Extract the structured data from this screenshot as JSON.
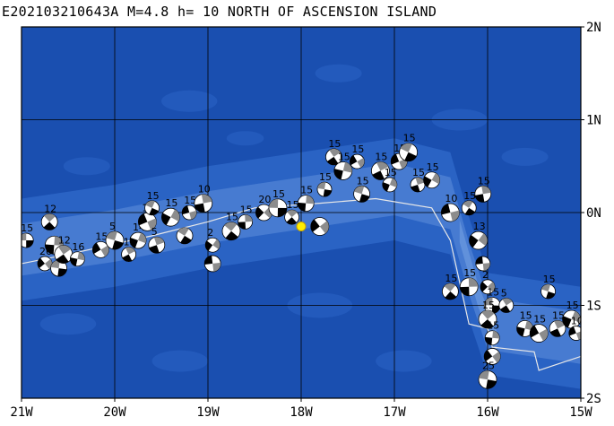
{
  "title": "E202103210643A  M=4.8  h= 10  NORTH OF ASCENSION ISLAND",
  "axes": {
    "lon_labels": [
      "21W",
      "20W",
      "19W",
      "18W",
      "17W",
      "16W",
      "15W"
    ],
    "lat_labels": [
      "2N",
      "1N",
      "0N",
      "1S",
      "2S"
    ],
    "lon_range": [
      -21,
      -15
    ],
    "lat_range": [
      -2,
      2
    ]
  },
  "colors": {
    "ocean_deep": "#1a4fb0",
    "ocean_mid": "#2a63c4",
    "ridge": "#5e90dc",
    "ridge_light": "#8ab4ea",
    "grid": "#000000",
    "plate_boundary": "#e8e8e8",
    "epicenter": "#ffee00",
    "beachball_shade": "#8c8c8c"
  },
  "epicenter": {
    "lon": -18.0,
    "lat": -0.15,
    "marker": "yellow-circle"
  },
  "plate_boundary": [
    [
      -21.0,
      -0.55
    ],
    [
      -20.5,
      -0.45
    ],
    [
      -19.6,
      -0.25
    ],
    [
      -19.0,
      -0.1
    ],
    [
      -18.5,
      0.05
    ],
    [
      -17.8,
      0.1
    ],
    [
      -17.2,
      0.15
    ],
    [
      -16.6,
      0.05
    ],
    [
      -16.4,
      -0.3
    ],
    [
      -16.2,
      -1.2
    ],
    [
      -16.0,
      -1.25
    ],
    [
      -15.95,
      -1.45
    ],
    [
      -15.5,
      -1.5
    ],
    [
      -15.45,
      -1.7
    ],
    [
      -15.0,
      -1.55
    ]
  ],
  "events": [
    {
      "lon": -20.95,
      "lat": -0.3,
      "label": "15"
    },
    {
      "lon": -20.7,
      "lat": -0.1,
      "label": "12"
    },
    {
      "lon": -20.65,
      "lat": -0.35,
      "label": ""
    },
    {
      "lon": -20.75,
      "lat": -0.55,
      "label": "26"
    },
    {
      "lon": -20.6,
      "lat": -0.6,
      "label": ""
    },
    {
      "lon": -20.55,
      "lat": -0.45,
      "label": "12"
    },
    {
      "lon": -20.4,
      "lat": -0.5,
      "label": "16"
    },
    {
      "lon": -20.15,
      "lat": -0.4,
      "label": "15"
    },
    {
      "lon": -20.0,
      "lat": -0.3,
      "label": "5"
    },
    {
      "lon": -19.85,
      "lat": -0.45,
      "label": "15"
    },
    {
      "lon": -19.75,
      "lat": -0.3,
      "label": "14"
    },
    {
      "lon": -19.65,
      "lat": -0.1,
      "label": "15"
    },
    {
      "lon": -19.6,
      "lat": 0.05,
      "label": "15"
    },
    {
      "lon": -19.55,
      "lat": -0.35,
      "label": "5"
    },
    {
      "lon": -19.4,
      "lat": -0.05,
      "label": "15"
    },
    {
      "lon": -19.2,
      "lat": 0.0,
      "label": "15"
    },
    {
      "lon": -19.25,
      "lat": -0.25,
      "label": ""
    },
    {
      "lon": -19.05,
      "lat": 0.1,
      "label": "10"
    },
    {
      "lon": -18.95,
      "lat": -0.35,
      "label": "2"
    },
    {
      "lon": -18.95,
      "lat": -0.55,
      "label": ""
    },
    {
      "lon": -18.75,
      "lat": -0.2,
      "label": "15"
    },
    {
      "lon": -18.6,
      "lat": -0.1,
      "label": "15"
    },
    {
      "lon": -18.4,
      "lat": 0.0,
      "label": "20"
    },
    {
      "lon": -18.25,
      "lat": 0.05,
      "label": "15"
    },
    {
      "lon": -18.1,
      "lat": -0.05,
      "label": "15"
    },
    {
      "lon": -17.95,
      "lat": 0.1,
      "label": "15"
    },
    {
      "lon": -17.8,
      "lat": -0.15,
      "label": ""
    },
    {
      "lon": -17.75,
      "lat": 0.25,
      "label": "15"
    },
    {
      "lon": -17.65,
      "lat": 0.6,
      "label": "15"
    },
    {
      "lon": -17.55,
      "lat": 0.45,
      "label": "15"
    },
    {
      "lon": -17.4,
      "lat": 0.55,
      "label": "15"
    },
    {
      "lon": -17.35,
      "lat": 0.2,
      "label": "15"
    },
    {
      "lon": -17.15,
      "lat": 0.45,
      "label": "15"
    },
    {
      "lon": -17.05,
      "lat": 0.3,
      "label": "15"
    },
    {
      "lon": -16.95,
      "lat": 0.55,
      "label": "15"
    },
    {
      "lon": -16.85,
      "lat": 0.65,
      "label": "15"
    },
    {
      "lon": -16.75,
      "lat": 0.3,
      "label": "15"
    },
    {
      "lon": -16.6,
      "lat": 0.35,
      "label": "15"
    },
    {
      "lon": -16.4,
      "lat": 0.0,
      "label": "10"
    },
    {
      "lon": -16.2,
      "lat": 0.05,
      "label": "15"
    },
    {
      "lon": -16.05,
      "lat": 0.2,
      "label": "15"
    },
    {
      "lon": -16.1,
      "lat": -0.3,
      "label": "13"
    },
    {
      "lon": -16.05,
      "lat": -0.55,
      "label": ""
    },
    {
      "lon": -16.4,
      "lat": -0.85,
      "label": "15"
    },
    {
      "lon": -16.2,
      "lat": -0.8,
      "label": "15"
    },
    {
      "lon": -16.0,
      "lat": -0.8,
      "label": "2"
    },
    {
      "lon": -15.95,
      "lat": -1.0,
      "label": "15"
    },
    {
      "lon": -16.0,
      "lat": -1.15,
      "label": "15"
    },
    {
      "lon": -15.95,
      "lat": -1.35,
      "label": "15"
    },
    {
      "lon": -15.95,
      "lat": -1.55,
      "label": ""
    },
    {
      "lon": -16.0,
      "lat": -1.8,
      "label": "25"
    },
    {
      "lon": -15.8,
      "lat": -1.0,
      "label": "5"
    },
    {
      "lon": -15.6,
      "lat": -1.25,
      "label": "15"
    },
    {
      "lon": -15.45,
      "lat": -1.3,
      "label": "15"
    },
    {
      "lon": -15.35,
      "lat": -0.85,
      "label": "15"
    },
    {
      "lon": -15.25,
      "lat": -1.25,
      "label": "15"
    },
    {
      "lon": -15.1,
      "lat": -1.15,
      "label": "15"
    },
    {
      "lon": -15.05,
      "lat": -1.3,
      "label": "10"
    }
  ]
}
